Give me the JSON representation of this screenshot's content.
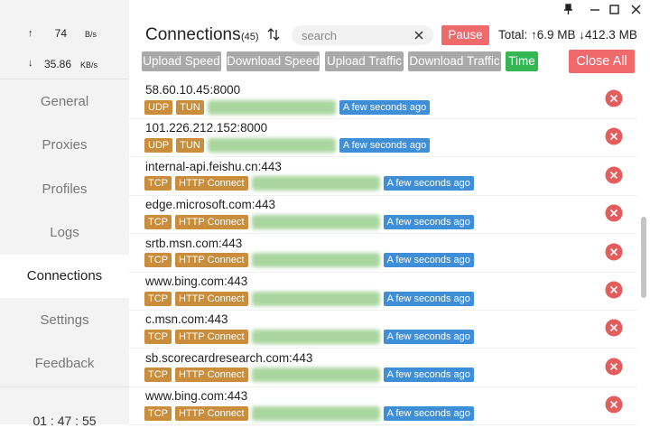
{
  "sidebar": {
    "upload": {
      "arrow": "↑",
      "value": "74",
      "unit": "B/s"
    },
    "download": {
      "arrow": "↓",
      "value": "35.86",
      "unit": "KB/s"
    },
    "menu": [
      {
        "label": "General",
        "active": false
      },
      {
        "label": "Proxies",
        "active": false
      },
      {
        "label": "Profiles",
        "active": false
      },
      {
        "label": "Logs",
        "active": false
      },
      {
        "label": "Connections",
        "active": true
      },
      {
        "label": "Settings",
        "active": false
      },
      {
        "label": "Feedback",
        "active": false
      }
    ],
    "clock": "01 : 47 : 55"
  },
  "header": {
    "title": "Connections",
    "count": "(45)",
    "search_placeholder": "search",
    "pause": "Pause",
    "total": "Total: ↑6.9 MB ↓412.3 MB"
  },
  "sort_buttons": [
    {
      "label": "Upload Speed",
      "active": false
    },
    {
      "label": "Download Speed",
      "active": false
    },
    {
      "label": "Upload Traffic",
      "active": false
    },
    {
      "label": "Download Traffic",
      "active": false
    },
    {
      "label": "Time",
      "active": true
    }
  ],
  "close_all": "Close All",
  "connections": [
    {
      "host": "58.60.10.45:8000",
      "network": "UDP",
      "type": "TUN",
      "time": "A few seconds ago"
    },
    {
      "host": "101.226.212.152:8000",
      "network": "UDP",
      "type": "TUN",
      "time": "A few seconds ago"
    },
    {
      "host": "internal-api.feishu.cn:443",
      "network": "TCP",
      "type": "HTTP Connect",
      "time": "A few seconds ago"
    },
    {
      "host": "edge.microsoft.com:443",
      "network": "TCP",
      "type": "HTTP Connect",
      "time": "A few seconds ago"
    },
    {
      "host": "srtb.msn.com:443",
      "network": "TCP",
      "type": "HTTP Connect",
      "time": "A few seconds ago"
    },
    {
      "host": "www.bing.com:443",
      "network": "TCP",
      "type": "HTTP Connect",
      "time": "A few seconds ago"
    },
    {
      "host": "c.msn.com:443",
      "network": "TCP",
      "type": "HTTP Connect",
      "time": "A few seconds ago"
    },
    {
      "host": "sb.scorecardresearch.com:443",
      "network": "TCP",
      "type": "HTTP Connect",
      "time": "A few seconds ago"
    },
    {
      "host": "www.bing.com:443",
      "network": "TCP",
      "type": "HTTP Connect",
      "time": "A few seconds ago"
    }
  ]
}
